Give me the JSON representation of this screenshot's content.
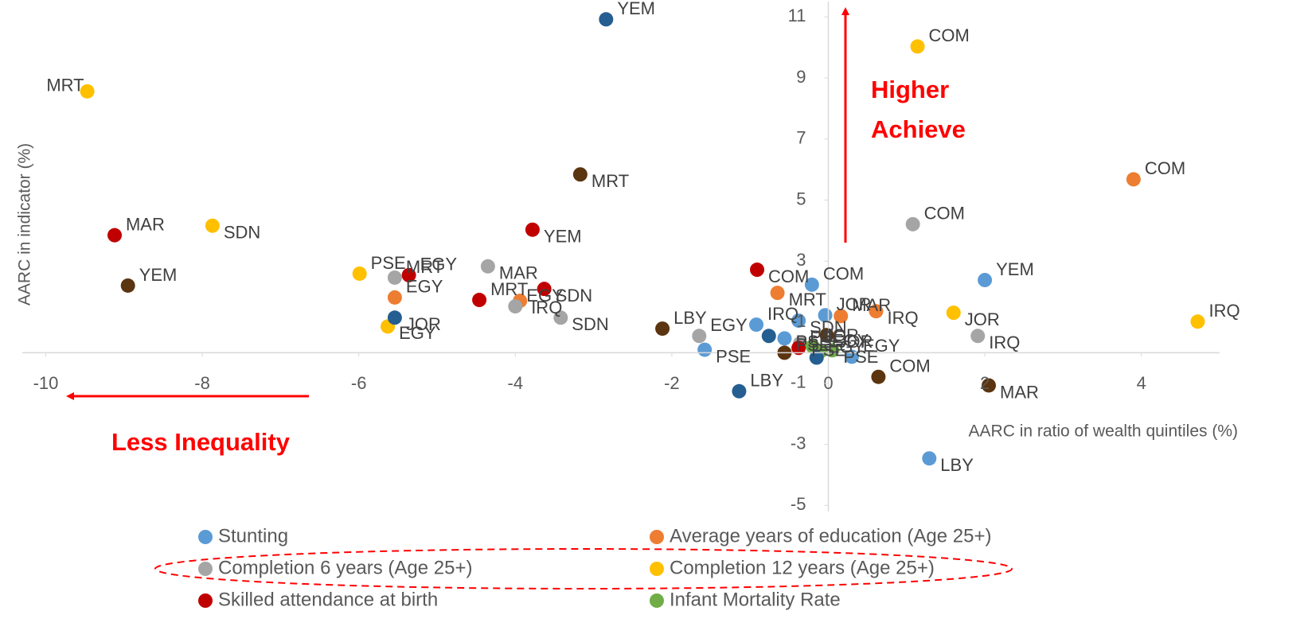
{
  "chart_data": {
    "type": "scatter",
    "x_label": "AARC in ratio of wealth quintiles (%)",
    "y_label": "AARC in indicator (%)",
    "annotations": [
      "Higher Achieve",
      "Less Inequality"
    ],
    "xlim": [
      -10.3,
      5.0
    ],
    "ylim": [
      -5.2,
      11.5
    ],
    "xticks": [
      -10,
      -8,
      -6,
      -4,
      -2,
      0,
      2,
      4
    ],
    "yticks": [
      -5,
      -3,
      -1,
      1,
      3,
      5,
      7,
      9,
      11
    ],
    "series": [
      {
        "name": "Stunting",
        "color": "#5b9bd5",
        "x": [
          2.0,
          1.29,
          -0.21,
          -1.58,
          -0.92,
          -0.38,
          -0.04,
          -0.56,
          0.3
        ],
        "values": [
          2.38,
          -3.46,
          2.23,
          0.1,
          0.92,
          1.05,
          1.23,
          0.47,
          -0.13
        ],
        "labels": [
          "YEM",
          "LBY",
          "COM",
          "PSE",
          "IRQ",
          "SDN",
          "JOR",
          "PSE",
          "EGY"
        ]
      },
      {
        "name": "Average years of education (Age 25+)",
        "color": "#ed7d31",
        "x": [
          3.9,
          -0.65,
          0.16,
          0.61,
          -5.54,
          -3.94
        ],
        "values": [
          5.68,
          1.96,
          1.2,
          1.36,
          1.81,
          1.7
        ],
        "labels": [
          "COM",
          "MRT",
          "MAR",
          "IRQ",
          "EGY",
          "IRQ"
        ]
      },
      {
        "name": "Completion 6 years (Age 25+)",
        "color": "#a5a5a5",
        "x": [
          1.08,
          1.91,
          -5.54,
          -4.35,
          -4.0,
          -3.42,
          -1.65,
          -0.36
        ],
        "values": [
          4.21,
          0.55,
          2.46,
          2.83,
          1.52,
          1.15,
          0.55,
          0.31
        ],
        "labels": [
          "COM",
          "IRQ",
          "MRT",
          "MAR",
          "EGY",
          "SDN",
          "EGY",
          "PSE"
        ]
      },
      {
        "name": "Completion 12 years (Age 25+)",
        "color": "#ffc000",
        "x": [
          -9.47,
          -7.87,
          -5.99,
          -5.63,
          1.14,
          1.6,
          4.72
        ],
        "values": [
          8.56,
          4.16,
          2.59,
          0.86,
          10.03,
          1.31,
          1.02
        ],
        "labels": [
          "MRT",
          "SDN",
          "PSE",
          "EGY",
          "COM",
          "JOR",
          "IRQ"
        ]
      },
      {
        "name": "Skilled attendance at birth",
        "color": "#c00000",
        "x": [
          -9.12,
          -3.78,
          -5.36,
          -3.63,
          -4.46,
          -0.91,
          -0.38
        ],
        "values": [
          3.85,
          4.03,
          2.54,
          2.09,
          1.73,
          2.72,
          0.16
        ],
        "labels": [
          "MAR",
          "YEM",
          "EGY",
          "SDN",
          "MRT",
          "COM",
          "PSE"
        ]
      },
      {
        "name": "Infant Mortality Rate",
        "color": "#70ad47",
        "x": [
          -0.2,
          0.05,
          -0.1
        ],
        "values": [
          0.21,
          0.08,
          0.05
        ],
        "labels": [
          "JOR",
          "PSE",
          "EGY"
        ]
      },
      {
        "color": "#255e91",
        "x": [
          -2.84,
          -5.54,
          -1.14,
          -0.76,
          -0.15
        ],
        "values": [
          10.92,
          1.15,
          -1.26,
          0.55,
          -0.16
        ],
        "labels": [
          "YEM",
          "JOR",
          "LBY",
          null,
          "EGY"
        ]
      },
      {
        "color": "#5b3410",
        "x": [
          -8.95,
          -3.17,
          -2.12,
          2.05,
          0.64,
          -0.02,
          -0.56
        ],
        "values": [
          2.2,
          5.84,
          0.79,
          -1.07,
          -0.79,
          0.58,
          0.0
        ],
        "labels": [
          "YEM",
          "MRT",
          "LBY",
          "MAR",
          "COM",
          "JOR",
          "PSE"
        ]
      }
    ]
  }
}
